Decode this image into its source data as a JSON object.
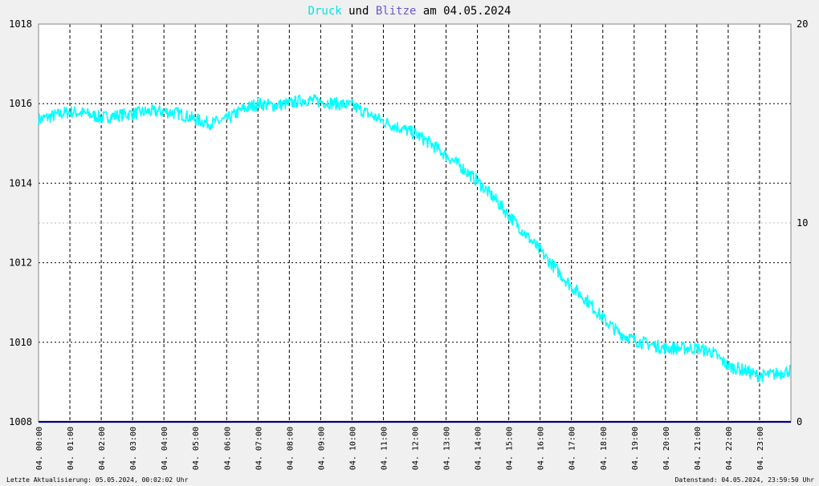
{
  "title": {
    "part1": "Druck",
    "part2": " und ",
    "part3": "Blitze",
    "part4": " am 04.05.2024"
  },
  "footer": {
    "left": "Letzte Aktualisierung: 05.05.2024, 00:02:02 Uhr",
    "right": "Datenstand: 04.05.2024, 23:59:50 Uhr"
  },
  "colors": {
    "druck": "#00ffff",
    "blitze": "#6a5acd",
    "zero_line": "#000080",
    "grid": "#000000",
    "background": "#ffffff"
  },
  "chart_data": {
    "type": "line",
    "title": "Druck und Blitze am 04.05.2024",
    "y_left": {
      "min": 1008,
      "max": 1018,
      "ticks": [
        1008,
        1010,
        1012,
        1014,
        1016,
        1018
      ]
    },
    "y_right": {
      "min": 0,
      "max": 20,
      "ticks": [
        0,
        10,
        20
      ]
    },
    "x_tick_labels": [
      "04. 00:00",
      "04. 01:00",
      "04. 02:00",
      "04. 03:00",
      "04. 04:00",
      "04. 05:00",
      "04. 06:00",
      "04. 07:00",
      "04. 08:00",
      "04. 09:00",
      "04. 10:00",
      "04. 11:00",
      "04. 12:00",
      "04. 13:00",
      "04. 14:00",
      "04. 15:00",
      "04. 16:00",
      "04. 17:00",
      "04. 18:00",
      "04. 19:00",
      "04. 20:00",
      "04. 21:00",
      "04. 22:00",
      "04. 23:00"
    ],
    "grid": true,
    "series": [
      {
        "name": "Druck",
        "axis": "left",
        "x_hours": [
          0,
          0.5,
          1,
          1.5,
          2,
          2.5,
          3,
          3.5,
          4,
          4.5,
          5,
          5.5,
          6,
          6.5,
          7,
          7.5,
          8,
          8.5,
          9,
          9.5,
          10,
          10.5,
          11,
          11.5,
          12,
          12.5,
          13,
          13.5,
          14,
          14.5,
          15,
          15.5,
          16,
          16.5,
          17,
          17.5,
          18,
          18.5,
          19,
          19.5,
          20,
          20.5,
          21,
          21.5,
          22,
          22.5,
          23,
          23.5,
          23.99
        ],
        "values": [
          1015.6,
          1015.7,
          1015.8,
          1015.75,
          1015.65,
          1015.7,
          1015.75,
          1015.8,
          1015.8,
          1015.75,
          1015.6,
          1015.5,
          1015.6,
          1015.85,
          1016.0,
          1015.95,
          1016.0,
          1016.1,
          1016.05,
          1016.0,
          1015.95,
          1015.75,
          1015.55,
          1015.4,
          1015.25,
          1015.0,
          1014.7,
          1014.4,
          1014.05,
          1013.65,
          1013.2,
          1012.75,
          1012.3,
          1011.85,
          1011.4,
          1011.05,
          1010.6,
          1010.25,
          1010.05,
          1009.95,
          1009.85,
          1009.85,
          1009.85,
          1009.75,
          1009.4,
          1009.3,
          1009.15,
          1009.2,
          1009.3
        ]
      },
      {
        "name": "Blitze",
        "axis": "right",
        "x_hours": [
          0,
          24
        ],
        "values": [
          0,
          0
        ]
      }
    ]
  }
}
